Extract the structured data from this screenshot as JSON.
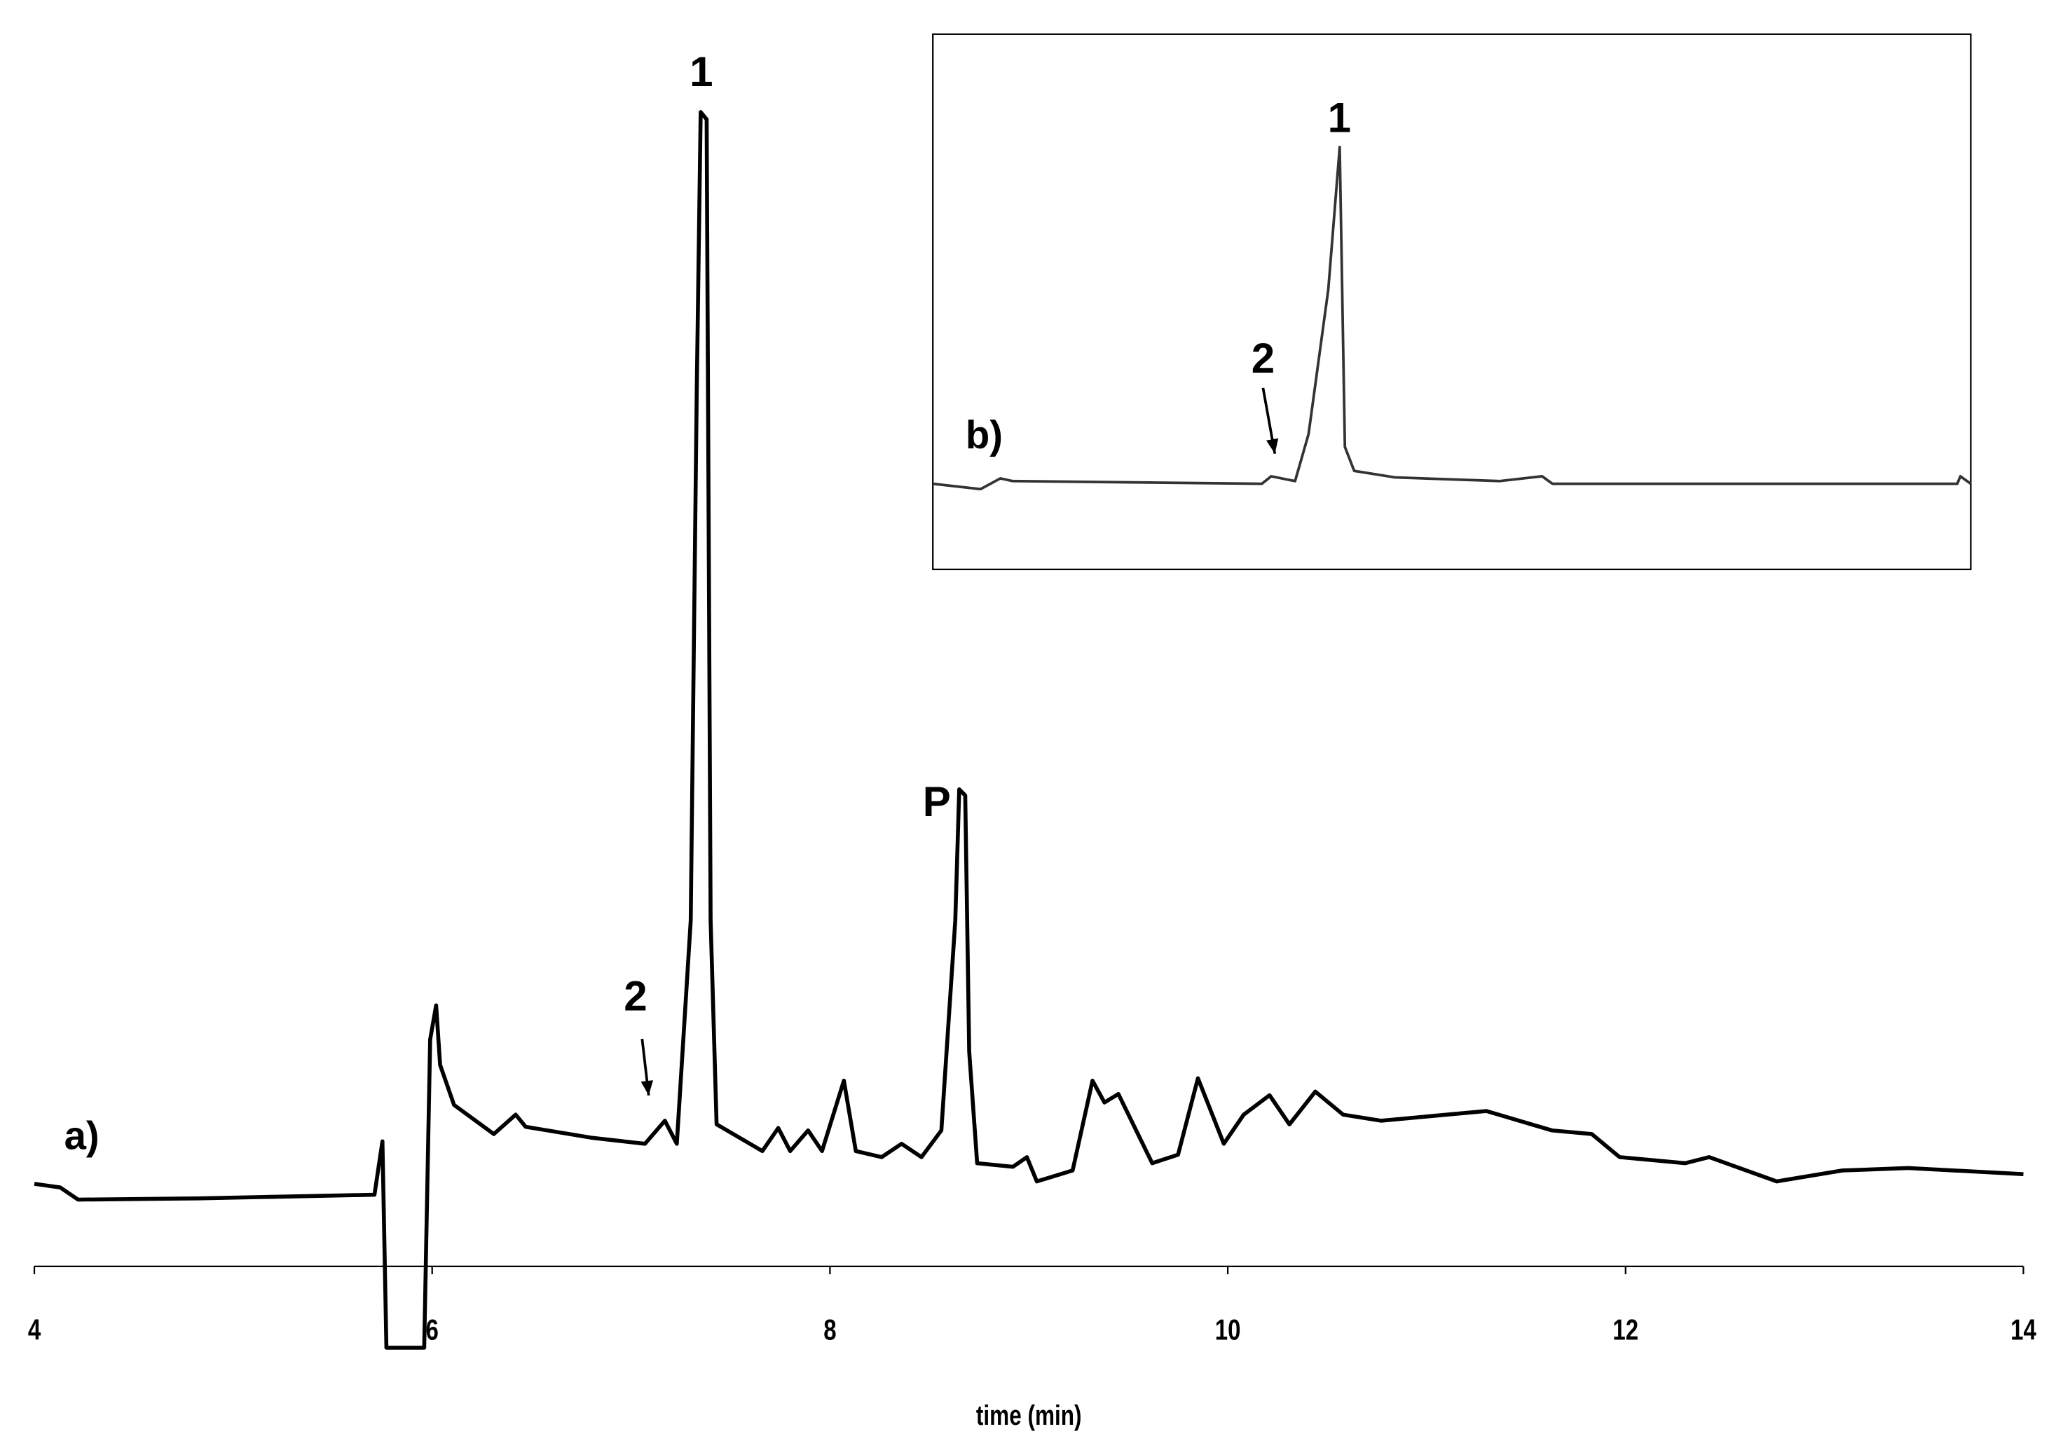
{
  "chart_data": [
    {
      "type": "line",
      "label": "a)",
      "x_label": "time (min)",
      "xlim": [
        4,
        14
      ],
      "xticks": [
        4,
        6,
        8,
        10,
        12,
        14
      ],
      "ylim": [
        0,
        100
      ],
      "color": "#000000",
      "annotations": [
        "1",
        "2",
        "P"
      ],
      "x": [
        4.0,
        4.13,
        4.22,
        4.82,
        5.71,
        5.75,
        5.77,
        5.96,
        5.99,
        6.02,
        6.04,
        6.11,
        6.31,
        6.42,
        6.47,
        6.8,
        7.07,
        7.17,
        7.23,
        7.3,
        7.33,
        7.35,
        7.38,
        7.4,
        7.43,
        7.66,
        7.74,
        7.8,
        7.89,
        7.96,
        8.07,
        8.13,
        8.26,
        8.36,
        8.46,
        8.56,
        8.63,
        8.65,
        8.68,
        8.7,
        8.74,
        8.92,
        8.99,
        9.04,
        9.22,
        9.32,
        9.38,
        9.45,
        9.62,
        9.75,
        9.85,
        9.98,
        10.08,
        10.21,
        10.31,
        10.44,
        10.58,
        10.77,
        11.3,
        11.63,
        11.83,
        11.97,
        12.3,
        12.42,
        12.76,
        13.09,
        13.42,
        14.0
      ],
      "values": [
        6.8,
        6.5,
        5.5,
        5.6,
        5.9,
        10.3,
        -6.7,
        -6.7,
        18.7,
        21.5,
        16.6,
        13.3,
        10.9,
        12.5,
        11.5,
        10.6,
        10.1,
        12.0,
        10.1,
        28.5,
        71.8,
        95.1,
        94.5,
        28.5,
        11.7,
        9.5,
        11.4,
        9.5,
        11.2,
        9.5,
        15.3,
        9.5,
        9.0,
        10.1,
        9.0,
        11.2,
        28.5,
        39.3,
        38.8,
        17.7,
        8.5,
        8.2,
        9.0,
        7.0,
        7.9,
        15.3,
        13.5,
        14.2,
        8.5,
        9.2,
        15.5,
        10.1,
        12.5,
        14.1,
        11.7,
        14.4,
        12.5,
        12.0,
        12.8,
        11.2,
        10.9,
        9.0,
        8.5,
        9.0,
        7.0,
        7.9,
        8.1,
        7.6
      ]
    },
    {
      "type": "line",
      "label": "b)",
      "xlim": [
        0,
        100
      ],
      "ylim": [
        0,
        100
      ],
      "color": "#333333",
      "annotations": [
        "1",
        "2"
      ],
      "x": [
        0,
        4.6,
        6.5,
        7.7,
        31.7,
        32.6,
        34.9,
        36.2,
        38.1,
        39.2,
        39.7,
        40.6,
        44.5,
        54.6,
        58.7,
        59.7,
        98.7,
        99.0,
        100
      ],
      "values": [
        16.0,
        15.0,
        17.0,
        16.5,
        16.0,
        17.4,
        16.5,
        25.3,
        52.3,
        78.9,
        22.9,
        18.4,
        17.2,
        16.5,
        17.4,
        16.0,
        16.0,
        17.4,
        16.0
      ]
    }
  ]
}
